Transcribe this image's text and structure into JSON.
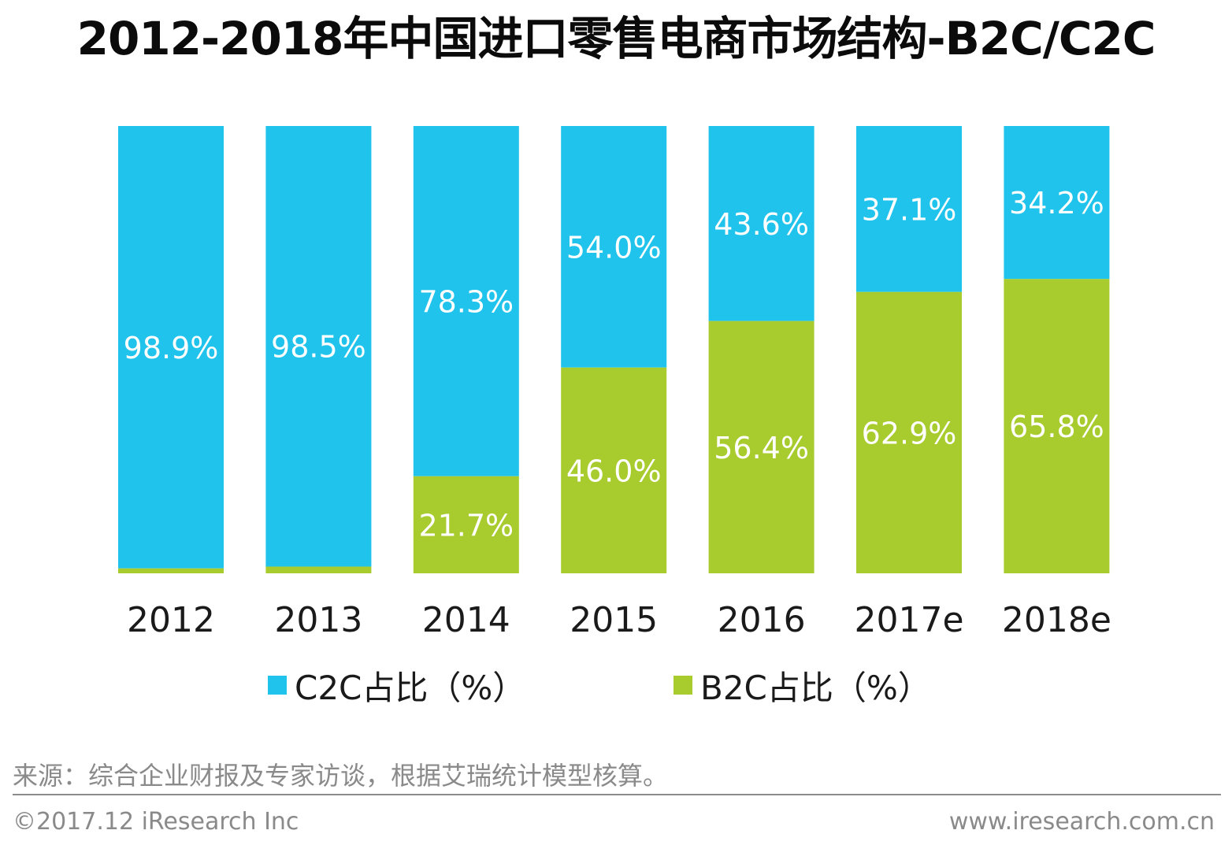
{
  "colors": {
    "c2c": "#1fc3ec",
    "b2c": "#a8cb2e",
    "label": "#ffffff"
  },
  "chart_data": {
    "type": "bar",
    "stacked": true,
    "title": "2012-2018年中国进口零售电商市场结构-B2C/C2C",
    "categories": [
      "2012",
      "2013",
      "2014",
      "2015",
      "2016",
      "2017e",
      "2018e"
    ],
    "series": [
      {
        "name": "B2C占比（%）",
        "values": [
          1.1,
          1.5,
          21.7,
          46.0,
          56.4,
          62.9,
          65.8
        ],
        "labels": [
          "",
          "",
          "21.7%",
          "46.0%",
          "56.4%",
          "62.9%",
          "65.8%"
        ]
      },
      {
        "name": "C2C占比（%）",
        "values": [
          98.9,
          98.5,
          78.3,
          54.0,
          43.6,
          37.1,
          34.2
        ],
        "labels": [
          "98.9%",
          "98.5%",
          "78.3%",
          "54.0%",
          "43.6%",
          "37.1%",
          "34.2%"
        ]
      }
    ],
    "ylim": [
      0,
      100
    ],
    "xlabel": "",
    "ylabel": "",
    "legend_position": "bottom"
  },
  "legend": {
    "c2c": "C2C占比（%）",
    "b2c": "B2C占比（%）"
  },
  "source": "来源：综合企业财报及专家访谈，根据艾瑞统计模型核算。",
  "footer": {
    "copyright": "©2017.12 iResearch Inc",
    "website": "www.iresearch.com.cn"
  }
}
